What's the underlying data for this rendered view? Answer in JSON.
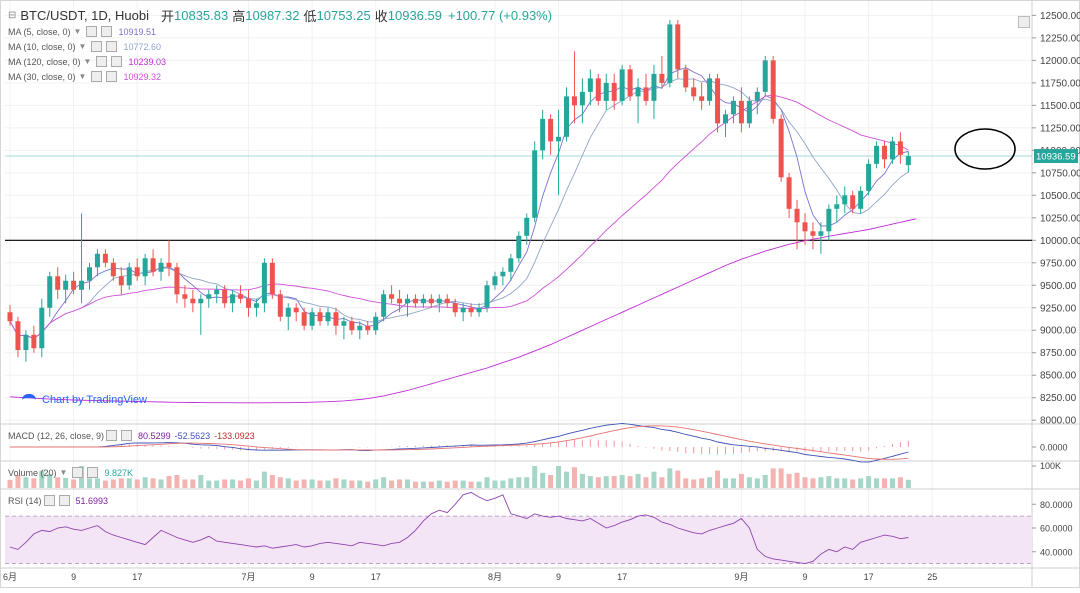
{
  "header": {
    "symbol": "BTC/USDT, 1D, Huobi",
    "open_label": "开",
    "open": "10835.83",
    "high_label": "高",
    "high": "10987.32",
    "low_label": "低",
    "low": "10753.25",
    "close_label": "收",
    "close": "10936.59",
    "change": "+100.77 (+0.93%)"
  },
  "indicators": [
    {
      "label": "MA (5, close, 0)",
      "value": "10919.51",
      "color": "#7b6fd0"
    },
    {
      "label": "MA (10, close, 0)",
      "value": "10772.60",
      "color": "#90a4c8"
    },
    {
      "label": "MA (120, close, 0)",
      "value": "10239.03",
      "color": "#c02ad8"
    },
    {
      "label": "MA (30, close, 0)",
      "value": "10929.32",
      "color": "#d050d8"
    }
  ],
  "macd": {
    "label": "MACD (12, 26, close, 9)",
    "v1": "80.5299",
    "v2": "-52.5623",
    "v3": "-133.0923"
  },
  "volume": {
    "label": "Volume (20)",
    "value": "9.827K"
  },
  "rsi": {
    "label": "RSI (14)",
    "value": "51.6993"
  },
  "attribution": "Chart by TradingView",
  "price_tag": "10936.59",
  "chart_data": {
    "type": "candlestick",
    "y_ticks": [
      "12500.00",
      "12250.00",
      "12000.00",
      "11750.00",
      "11500.00",
      "11250.00",
      "11000.00",
      "10750.00",
      "10500.00",
      "10250.00",
      "10000.00",
      "9750.00",
      "9500.00",
      "9250.00",
      "9000.00",
      "8750.00",
      "8500.00",
      "8250.00",
      "8000.00"
    ],
    "ylim": [
      7980,
      12560
    ],
    "x_ticks": [
      "6月",
      "9",
      "17",
      "7月",
      "9",
      "17",
      "8月",
      "9",
      "17",
      "9月",
      "9",
      "17",
      "25"
    ],
    "x_tick_days": [
      0,
      8,
      16,
      30,
      38,
      46,
      61,
      69,
      77,
      92,
      100,
      108,
      116
    ],
    "horizontal_level": 10000,
    "current_price": 10936.59,
    "colors": {
      "up": "#26a69a",
      "down": "#ef5350"
    },
    "macd_ticks": [
      "0.0000"
    ],
    "volume_ticks": [
      "100K"
    ],
    "volume_ylim": [
      0,
      100000
    ],
    "rsi_ticks": [
      "80.0000",
      "60.0000",
      "40.0000"
    ],
    "rsi_ylim": [
      28,
      92
    ],
    "rsi_bands": [
      30,
      70
    ],
    "rsi_values": [
      44,
      42,
      48,
      55,
      58,
      57,
      60,
      61,
      59,
      58,
      60,
      62,
      57,
      54,
      52,
      50,
      48,
      46,
      52,
      58,
      55,
      52,
      50,
      48,
      50,
      53,
      49,
      48,
      47,
      46,
      45,
      44,
      45,
      43,
      44,
      45,
      46,
      44,
      45,
      47,
      48,
      47,
      46,
      45,
      48,
      47,
      46,
      45,
      47,
      48,
      52,
      58,
      66,
      72,
      75,
      73,
      80,
      88,
      90,
      86,
      83,
      85,
      88,
      72,
      70,
      68,
      72,
      70,
      69,
      70,
      68,
      67,
      66,
      68,
      64,
      60,
      62,
      65,
      67,
      70,
      71,
      69,
      65,
      63,
      60,
      58,
      56,
      55,
      58,
      60,
      62,
      64,
      68,
      60,
      42,
      36,
      34,
      33,
      32,
      31,
      30,
      32,
      38,
      42,
      40,
      44,
      42,
      48,
      50,
      52,
      54,
      53,
      51,
      52
    ],
    "candles": [
      [
        9200,
        9280,
        9050,
        9100
      ],
      [
        9100,
        9150,
        8700,
        8780
      ],
      [
        8780,
        9000,
        8650,
        8950
      ],
      [
        8950,
        9050,
        8750,
        8800
      ],
      [
        8800,
        9350,
        8700,
        9250
      ],
      [
        9250,
        9650,
        9150,
        9600
      ],
      [
        9600,
        9700,
        9350,
        9450
      ],
      [
        9450,
        9620,
        9300,
        9550
      ],
      [
        9550,
        9650,
        9400,
        9450
      ],
      [
        9450,
        10300,
        9300,
        9550
      ],
      [
        9550,
        9750,
        9450,
        9700
      ],
      [
        9700,
        9900,
        9600,
        9850
      ],
      [
        9850,
        9900,
        9700,
        9750
      ],
      [
        9750,
        9800,
        9550,
        9600
      ],
      [
        9600,
        9700,
        9400,
        9500
      ],
      [
        9500,
        9750,
        9450,
        9700
      ],
      [
        9700,
        9800,
        9550,
        9600
      ],
      [
        9600,
        9850,
        9500,
        9800
      ],
      [
        9800,
        9900,
        9600,
        9650
      ],
      [
        9650,
        9800,
        9550,
        9750
      ],
      [
        9750,
        10000,
        9600,
        9700
      ],
      [
        9700,
        9750,
        9300,
        9400
      ],
      [
        9400,
        9500,
        9250,
        9350
      ],
      [
        9350,
        9450,
        9200,
        9300
      ],
      [
        9300,
        9400,
        8950,
        9350
      ],
      [
        9350,
        9450,
        9250,
        9400
      ],
      [
        9400,
        9500,
        9300,
        9450
      ],
      [
        9450,
        9500,
        9250,
        9300
      ],
      [
        9300,
        9450,
        9200,
        9400
      ],
      [
        9400,
        9500,
        9300,
        9350
      ],
      [
        9350,
        9450,
        9150,
        9250
      ],
      [
        9250,
        9350,
        9150,
        9300
      ],
      [
        9300,
        9800,
        9200,
        9750
      ],
      [
        9750,
        9800,
        9350,
        9400
      ],
      [
        9400,
        9450,
        9100,
        9150
      ],
      [
        9150,
        9300,
        9000,
        9250
      ],
      [
        9250,
        9300,
        9100,
        9200
      ],
      [
        9200,
        9250,
        9000,
        9050
      ],
      [
        9050,
        9250,
        9000,
        9200
      ],
      [
        9200,
        9250,
        9050,
        9100
      ],
      [
        9100,
        9250,
        9050,
        9200
      ],
      [
        9200,
        9250,
        8950,
        9050
      ],
      [
        9050,
        9150,
        8900,
        9100
      ],
      [
        9100,
        9150,
        8950,
        9000
      ],
      [
        9000,
        9100,
        8900,
        9050
      ],
      [
        9050,
        9100,
        8950,
        9000
      ],
      [
        9000,
        9200,
        8950,
        9150
      ],
      [
        9150,
        9450,
        9100,
        9400
      ],
      [
        9400,
        9500,
        9300,
        9350
      ],
      [
        9350,
        9450,
        9200,
        9300
      ],
      [
        9300,
        9400,
        9150,
        9350
      ],
      [
        9350,
        9400,
        9250,
        9300
      ],
      [
        9300,
        9400,
        9250,
        9350
      ],
      [
        9350,
        9400,
        9250,
        9300
      ],
      [
        9300,
        9400,
        9200,
        9350
      ],
      [
        9350,
        9400,
        9250,
        9300
      ],
      [
        9300,
        9350,
        9150,
        9200
      ],
      [
        9200,
        9300,
        9100,
        9250
      ],
      [
        9250,
        9300,
        9150,
        9200
      ],
      [
        9200,
        9300,
        9150,
        9250
      ],
      [
        9250,
        9550,
        9200,
        9500
      ],
      [
        9500,
        9650,
        9450,
        9600
      ],
      [
        9600,
        9700,
        9500,
        9650
      ],
      [
        9650,
        9850,
        9550,
        9800
      ],
      [
        9800,
        10100,
        9750,
        10050
      ],
      [
        10050,
        10300,
        9950,
        10250
      ],
      [
        10250,
        11100,
        10200,
        11000
      ],
      [
        11000,
        11450,
        10900,
        11350
      ],
      [
        11350,
        11400,
        10950,
        11100
      ],
      [
        11100,
        11450,
        10500,
        11150
      ],
      [
        11150,
        11700,
        11100,
        11600
      ],
      [
        11600,
        12100,
        11300,
        11500
      ],
      [
        11500,
        11800,
        11300,
        11650
      ],
      [
        11650,
        11900,
        11500,
        11800
      ],
      [
        11800,
        11850,
        11500,
        11550
      ],
      [
        11550,
        11850,
        11450,
        11750
      ],
      [
        11750,
        11850,
        11450,
        11550
      ],
      [
        11550,
        11950,
        11500,
        11900
      ],
      [
        11900,
        11950,
        11550,
        11600
      ],
      [
        11600,
        11800,
        11300,
        11700
      ],
      [
        11700,
        11850,
        11500,
        11550
      ],
      [
        11550,
        11950,
        11350,
        11850
      ],
      [
        11850,
        12050,
        11700,
        11750
      ],
      [
        11750,
        12450,
        11700,
        12400
      ],
      [
        12400,
        12450,
        11800,
        11900
      ],
      [
        11900,
        11950,
        11650,
        11700
      ],
      [
        11700,
        11800,
        11550,
        11600
      ],
      [
        11600,
        11750,
        11450,
        11550
      ],
      [
        11550,
        11850,
        11500,
        11800
      ],
      [
        11800,
        11850,
        11200,
        11300
      ],
      [
        11300,
        11450,
        11150,
        11400
      ],
      [
        11400,
        11600,
        11300,
        11550
      ],
      [
        11550,
        11700,
        11200,
        11300
      ],
      [
        11300,
        11600,
        11250,
        11550
      ],
      [
        11550,
        11700,
        11400,
        11650
      ],
      [
        11650,
        12050,
        11600,
        12000
      ],
      [
        12000,
        12050,
        11300,
        11350
      ],
      [
        11350,
        11400,
        10650,
        10700
      ],
      [
        10700,
        10750,
        10250,
        10350
      ],
      [
        10350,
        10450,
        9900,
        10200
      ],
      [
        10200,
        10300,
        9950,
        10100
      ],
      [
        10100,
        10200,
        9900,
        10050
      ],
      [
        10050,
        10200,
        9850,
        10100
      ],
      [
        10100,
        10400,
        10000,
        10350
      ],
      [
        10350,
        10500,
        10200,
        10400
      ],
      [
        10400,
        10600,
        10300,
        10500
      ],
      [
        10500,
        10550,
        10300,
        10350
      ],
      [
        10350,
        10600,
        10300,
        10550
      ],
      [
        10550,
        10900,
        10500,
        10850
      ],
      [
        10850,
        11100,
        10800,
        11050
      ],
      [
        11050,
        11100,
        10800,
        10900
      ],
      [
        10900,
        11150,
        10850,
        11100
      ],
      [
        11100,
        11200,
        10850,
        10950
      ],
      [
        10835.83,
        10987.32,
        10753.25,
        10936.59
      ]
    ],
    "series": [
      {
        "name": "MA (5, close, 0)",
        "color": "#7b6fd0",
        "period": 5
      },
      {
        "name": "MA (10, close, 0)",
        "color": "#90a4c8",
        "period": 10
      },
      {
        "name": "MA (30, close, 0)",
        "color": "#d050d8",
        "period": 30
      },
      {
        "name": "MA (120, close, 0)",
        "color": "#c02ad8",
        "values": [
          8260,
          8255,
          8250,
          8245,
          8240,
          8235,
          8230,
          8228,
          8225,
          8222,
          8220,
          8218,
          8216,
          8214,
          8212,
          8210,
          8208,
          8206,
          8204,
          8202,
          8200,
          8199,
          8198,
          8197,
          8196,
          8195,
          8195,
          8194,
          8194,
          8193,
          8193,
          8193,
          8193,
          8194,
          8194,
          8195,
          8196,
          8198,
          8200,
          8203,
          8206,
          8210,
          8215,
          8222,
          8230,
          8240,
          8255,
          8270,
          8290,
          8310,
          8330,
          8355,
          8380,
          8405,
          8430,
          8455,
          8480,
          8505,
          8530,
          8555,
          8580,
          8610,
          8640,
          8670,
          8700,
          8735,
          8770,
          8805,
          8840,
          8880,
          8920,
          8960,
          9000,
          9040,
          9080,
          9120,
          9160,
          9200,
          9240,
          9280,
          9320,
          9360,
          9400,
          9440,
          9480,
          9520,
          9560,
          9600,
          9640,
          9680,
          9720,
          9755,
          9790,
          9820,
          9850,
          9880,
          9905,
          9930,
          9955,
          9975,
          9995,
          10012,
          10028,
          10045,
          10060,
          10075,
          10090,
          10105,
          10120,
          10140,
          10160,
          10180,
          10200,
          10220,
          10239
        ]
      }
    ]
  }
}
